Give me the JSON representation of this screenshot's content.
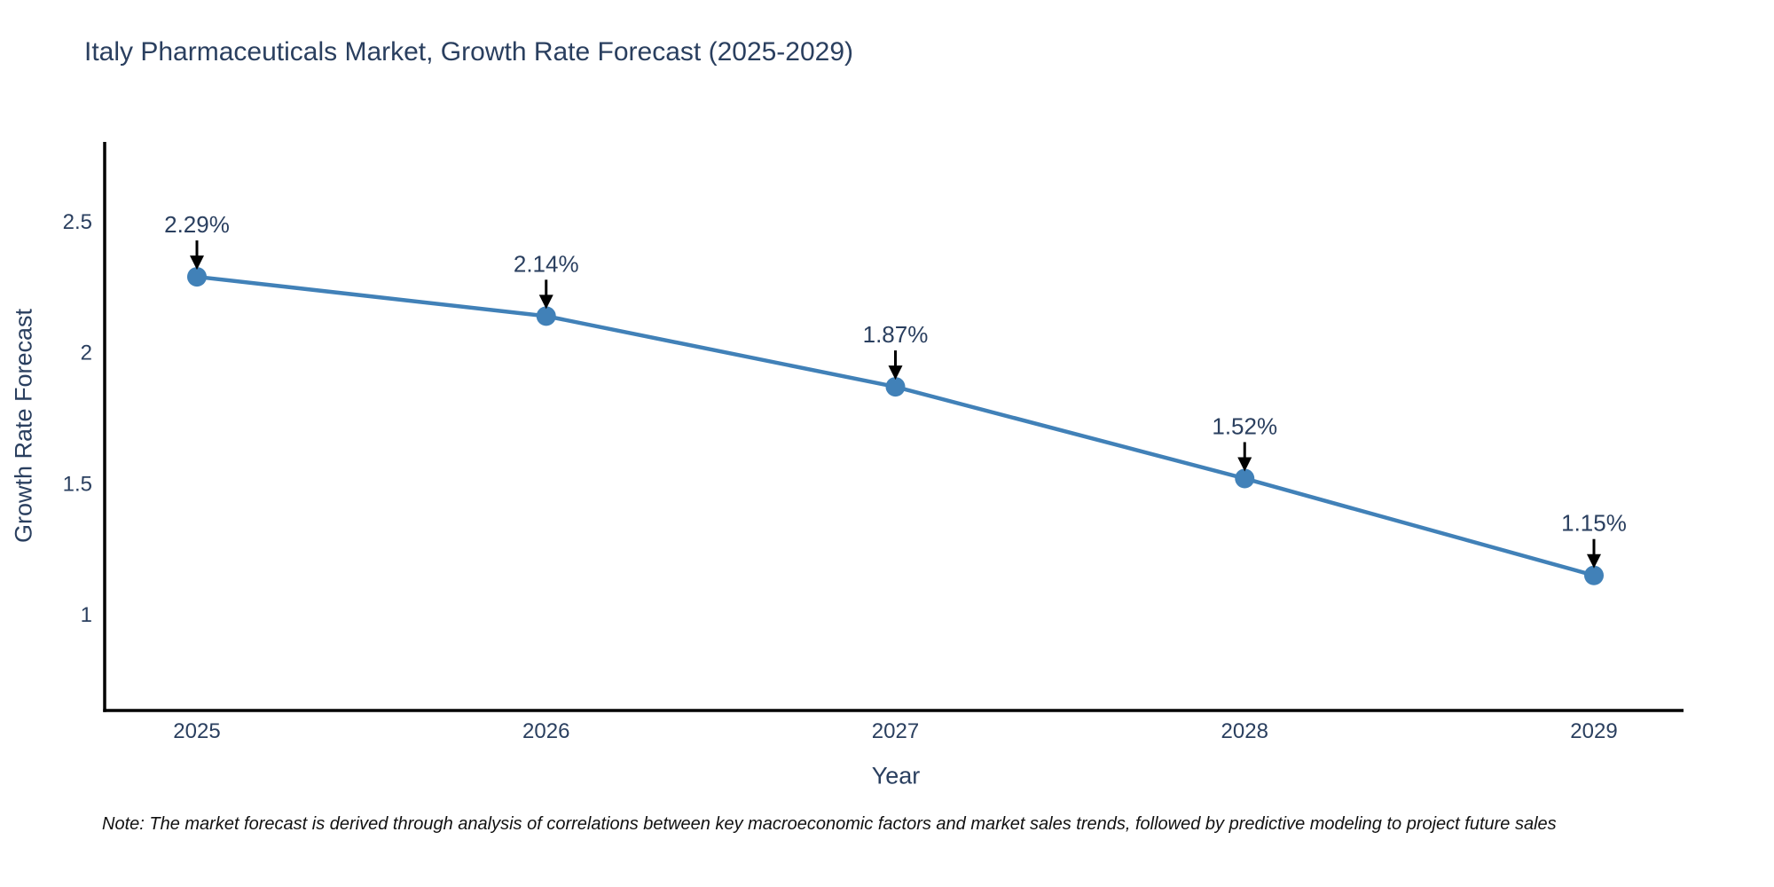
{
  "title": "Italy Pharmaceuticals Market, Growth Rate Forecast (2025-2029)",
  "note": "Note: The market forecast is derived through analysis of correlations between key macroeconomic factors and market sales trends, followed by predictive modeling to project future sales",
  "colors": {
    "title": "#2a3f5f",
    "tick": "#2a3f5f",
    "axis_label": "#2a3f5f",
    "line": "#4181b8",
    "marker": "#4181b8",
    "axis": "#000000",
    "annotation_text": "#2a3f5f",
    "annotation_arrow": "#000000",
    "note_text": "#111111",
    "background": "#ffffff"
  },
  "chart_data": {
    "type": "line",
    "title": "Italy Pharmaceuticals Market, Growth Rate Forecast (2025-2029)",
    "categories": [
      "2025",
      "2026",
      "2027",
      "2028",
      "2029"
    ],
    "values": [
      2.29,
      2.14,
      1.87,
      1.52,
      1.15
    ],
    "point_labels": [
      "2.29%",
      "2.14%",
      "1.87%",
      "1.52%",
      "1.15%"
    ],
    "xlabel": "Year",
    "ylabel": "Growth Rate Forecast",
    "yticks": [
      1,
      1.5,
      2,
      2.5
    ],
    "ylim": [
      0.64,
      2.8
    ],
    "grid": false,
    "legend": "none",
    "marker_style": "filled-circle",
    "annotation_style": "value label with downward black arrow above each point"
  }
}
